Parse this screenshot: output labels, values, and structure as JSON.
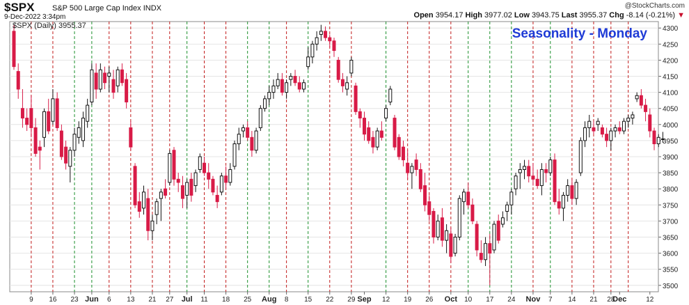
{
  "header": {
    "symbol": "$SPX",
    "name": "S&P 500 Large Cap Index",
    "exchange": "INDX",
    "date": "9-Dec-2022 3:34pm",
    "credit": "@StockCharts.com",
    "quote": {
      "open_label": "Open",
      "open": "3954.17",
      "high_label": "High",
      "high": "3977.02",
      "low_label": "Low",
      "low": "3943.75",
      "last_label": "Last",
      "last": "3955.37",
      "chg_label": "Chg",
      "chg": "-8.14 (-0.21%)",
      "down_marker": "▼"
    }
  },
  "colors": {
    "up": "#ffffff",
    "down": "#d81b47",
    "neutral": "#111111",
    "title": "#1f3bd6",
    "grid_green": "#1a8f2a",
    "grid_red": "#c21a1a"
  },
  "chart_data": {
    "type": "candlestick",
    "title": "Seasonality - Monday",
    "legend": "$SPX (Daily) 3955.37",
    "ylim": [
      3480,
      4320
    ],
    "yticks": [
      3500,
      3550,
      3600,
      3650,
      3700,
      3750,
      3800,
      3850,
      3900,
      3950,
      4000,
      4050,
      4100,
      4150,
      4200,
      4250,
      4300
    ],
    "xtick_labels": [
      {
        "day": 4,
        "label": "9"
      },
      {
        "day": 9,
        "label": "16"
      },
      {
        "day": 14,
        "label": "23"
      },
      {
        "day": 18,
        "label": "Jun"
      },
      {
        "day": 22,
        "label": "6"
      },
      {
        "day": 27,
        "label": "13"
      },
      {
        "day": 32,
        "label": "21"
      },
      {
        "day": 36,
        "label": "27"
      },
      {
        "day": 40,
        "label": "Jul"
      },
      {
        "day": 44,
        "label": "11"
      },
      {
        "day": 49,
        "label": "18"
      },
      {
        "day": 54,
        "label": "25"
      },
      {
        "day": 59,
        "label": "Aug"
      },
      {
        "day": 63,
        "label": "8"
      },
      {
        "day": 68,
        "label": "15"
      },
      {
        "day": 73,
        "label": "22"
      },
      {
        "day": 78,
        "label": "29"
      },
      {
        "day": 81,
        "label": "Sep"
      },
      {
        "day": 86,
        "label": "12"
      },
      {
        "day": 91,
        "label": "19"
      },
      {
        "day": 96,
        "label": "26"
      },
      {
        "day": 101,
        "label": "Oct"
      },
      {
        "day": 105,
        "label": "10"
      },
      {
        "day": 110,
        "label": "17"
      },
      {
        "day": 115,
        "label": "24"
      },
      {
        "day": 120,
        "label": "Nov"
      },
      {
        "day": 124,
        "label": "7"
      },
      {
        "day": 129,
        "label": "14"
      },
      {
        "day": 134,
        "label": "21"
      },
      {
        "day": 138,
        "label": "28"
      },
      {
        "day": 140,
        "label": "Dec"
      },
      {
        "day": 147,
        "label": "12"
      }
    ],
    "vlines": [
      {
        "day": 4,
        "color": "red"
      },
      {
        "day": 9,
        "color": "red"
      },
      {
        "day": 14,
        "color": "green"
      },
      {
        "day": 18,
        "color": "green"
      },
      {
        "day": 22,
        "color": "red"
      },
      {
        "day": 27,
        "color": "red"
      },
      {
        "day": 32,
        "color": "red"
      },
      {
        "day": 36,
        "color": "red"
      },
      {
        "day": 40,
        "color": "green"
      },
      {
        "day": 44,
        "color": "red"
      },
      {
        "day": 49,
        "color": "red"
      },
      {
        "day": 54,
        "color": "green"
      },
      {
        "day": 59,
        "color": "green"
      },
      {
        "day": 63,
        "color": "red"
      },
      {
        "day": 68,
        "color": "green"
      },
      {
        "day": 73,
        "color": "red"
      },
      {
        "day": 78,
        "color": "red"
      },
      {
        "day": 86,
        "color": "green"
      },
      {
        "day": 91,
        "color": "red"
      },
      {
        "day": 96,
        "color": "red"
      },
      {
        "day": 101,
        "color": "red"
      },
      {
        "day": 105,
        "color": "green"
      },
      {
        "day": 110,
        "color": "green"
      },
      {
        "day": 115,
        "color": "green"
      },
      {
        "day": 120,
        "color": "red"
      },
      {
        "day": 124,
        "color": "green"
      },
      {
        "day": 129,
        "color": "red"
      },
      {
        "day": 134,
        "color": "red"
      },
      {
        "day": 138,
        "color": "red"
      },
      {
        "day": 142,
        "color": "red"
      }
    ],
    "first_day": 0,
    "last_day": 148,
    "ohlc": [
      [
        4290,
        4310,
        4170,
        4180
      ],
      [
        4165,
        4190,
        4080,
        4110
      ],
      [
        4050,
        4110,
        3990,
        4020
      ],
      [
        4020,
        4050,
        3980,
        4000
      ],
      [
        4050,
        4090,
        3960,
        3990
      ],
      [
        3990,
        4020,
        3900,
        3910
      ],
      [
        3930,
        3950,
        3860,
        3920
      ],
      [
        3960,
        4050,
        3930,
        4040
      ],
      [
        4040,
        4080,
        3970,
        3980
      ],
      [
        4010,
        4110,
        4000,
        4080
      ],
      [
        4080,
        4100,
        3980,
        3990
      ],
      [
        3980,
        4000,
        3890,
        3900
      ],
      [
        3930,
        3950,
        3860,
        3880
      ],
      [
        3870,
        3930,
        3820,
        3920
      ],
      [
        3920,
        3990,
        3900,
        3970
      ],
      [
        3960,
        4010,
        3940,
        3990
      ],
      [
        3950,
        4040,
        3930,
        4020
      ],
      [
        4010,
        4080,
        3990,
        4060
      ],
      [
        4070,
        4190,
        4060,
        4170
      ],
      [
        4160,
        4190,
        4080,
        4110
      ],
      [
        4110,
        4190,
        4100,
        4170
      ],
      [
        4160,
        4180,
        4110,
        4130
      ],
      [
        4150,
        4180,
        4100,
        4160
      ],
      [
        4140,
        4170,
        4080,
        4100
      ],
      [
        4120,
        4180,
        4100,
        4170
      ],
      [
        4170,
        4190,
        4120,
        4130
      ],
      [
        4140,
        4160,
        4050,
        4070
      ],
      [
        3990,
        4010,
        3920,
        3930
      ],
      [
        3870,
        3880,
        3740,
        3750
      ],
      [
        3760,
        3790,
        3710,
        3730
      ],
      [
        3740,
        3810,
        3720,
        3790
      ],
      [
        3770,
        3800,
        3640,
        3670
      ],
      [
        3670,
        3720,
        3640,
        3700
      ],
      [
        3720,
        3770,
        3690,
        3760
      ],
      [
        3770,
        3800,
        3700,
        3790
      ],
      [
        3800,
        3830,
        3770,
        3780
      ],
      [
        3820,
        3920,
        3810,
        3910
      ],
      [
        3920,
        3930,
        3810,
        3830
      ],
      [
        3830,
        3850,
        3790,
        3820
      ],
      [
        3810,
        3840,
        3740,
        3770
      ],
      [
        3780,
        3830,
        3740,
        3820
      ],
      [
        3830,
        3850,
        3760,
        3780
      ],
      [
        3810,
        3860,
        3790,
        3850
      ],
      [
        3860,
        3910,
        3850,
        3900
      ],
      [
        3880,
        3900,
        3840,
        3850
      ],
      [
        3850,
        3880,
        3800,
        3830
      ],
      [
        3830,
        3840,
        3780,
        3790
      ],
      [
        3780,
        3810,
        3740,
        3760
      ],
      [
        3790,
        3850,
        3780,
        3840
      ],
      [
        3840,
        3870,
        3800,
        3820
      ],
      [
        3820,
        3880,
        3810,
        3860
      ],
      [
        3870,
        3950,
        3860,
        3940
      ],
      [
        3940,
        3990,
        3920,
        3970
      ],
      [
        3980,
        4000,
        3960,
        3990
      ],
      [
        3990,
        4010,
        3950,
        3960
      ],
      [
        3960,
        3980,
        3900,
        3920
      ],
      [
        3920,
        3990,
        3910,
        3980
      ],
      [
        3990,
        4060,
        3980,
        4050
      ],
      [
        4050,
        4090,
        4040,
        4080
      ],
      [
        4080,
        4120,
        4060,
        4100
      ],
      [
        4100,
        4140,
        4080,
        4120
      ],
      [
        4120,
        4160,
        4110,
        4140
      ],
      [
        4140,
        4160,
        4090,
        4100
      ],
      [
        4100,
        4140,
        4080,
        4130
      ],
      [
        4140,
        4160,
        4120,
        4150
      ],
      [
        4150,
        4170,
        4120,
        4130
      ],
      [
        4130,
        4150,
        4100,
        4110
      ],
      [
        4110,
        4140,
        4100,
        4130
      ],
      [
        4180,
        4240,
        4170,
        4210
      ],
      [
        4210,
        4260,
        4190,
        4250
      ],
      [
        4250,
        4290,
        4230,
        4270
      ],
      [
        4280,
        4310,
        4260,
        4290
      ],
      [
        4290,
        4305,
        4260,
        4270
      ],
      [
        4270,
        4280,
        4240,
        4260
      ],
      [
        4260,
        4270,
        4210,
        4230
      ],
      [
        4200,
        4210,
        4130,
        4140
      ],
      [
        4140,
        4160,
        4100,
        4120
      ],
      [
        4110,
        4150,
        4090,
        4130
      ],
      [
        4160,
        4210,
        4150,
        4200
      ],
      [
        4120,
        4130,
        4030,
        4040
      ],
      [
        4040,
        4050,
        3990,
        4020
      ],
      [
        4020,
        4040,
        3950,
        3970
      ],
      [
        3990,
        4010,
        3940,
        3950
      ],
      [
        3960,
        3980,
        3910,
        3930
      ],
      [
        3930,
        3990,
        3920,
        3980
      ],
      [
        3980,
        4010,
        3950,
        3960
      ],
      [
        4020,
        4060,
        4010,
        4050
      ],
      [
        4070,
        4120,
        4060,
        4110
      ],
      [
        4020,
        4030,
        3920,
        3930
      ],
      [
        3960,
        3970,
        3890,
        3900
      ],
      [
        3930,
        3950,
        3870,
        3890
      ],
      [
        3880,
        3920,
        3830,
        3850
      ],
      [
        3850,
        3880,
        3800,
        3870
      ],
      [
        3890,
        3910,
        3840,
        3860
      ],
      [
        3860,
        3880,
        3790,
        3800
      ],
      [
        3810,
        3850,
        3730,
        3750
      ],
      [
        3760,
        3780,
        3700,
        3720
      ],
      [
        3730,
        3740,
        3630,
        3650
      ],
      [
        3650,
        3720,
        3640,
        3700
      ],
      [
        3710,
        3740,
        3620,
        3640
      ],
      [
        3640,
        3690,
        3600,
        3670
      ],
      [
        3660,
        3680,
        3570,
        3590
      ],
      [
        3600,
        3660,
        3590,
        3650
      ],
      [
        3650,
        3780,
        3640,
        3770
      ],
      [
        3760,
        3800,
        3720,
        3790
      ],
      [
        3790,
        3820,
        3740,
        3750
      ],
      [
        3750,
        3770,
        3690,
        3700
      ],
      [
        3690,
        3700,
        3590,
        3610
      ],
      [
        3600,
        3640,
        3570,
        3580
      ],
      [
        3580,
        3650,
        3560,
        3630
      ],
      [
        3630,
        3660,
        3500,
        3600
      ],
      [
        3610,
        3700,
        3600,
        3690
      ],
      [
        3700,
        3720,
        3630,
        3640
      ],
      [
        3690,
        3730,
        3680,
        3710
      ],
      [
        3730,
        3760,
        3700,
        3750
      ],
      [
        3750,
        3800,
        3720,
        3790
      ],
      [
        3800,
        3850,
        3780,
        3840
      ],
      [
        3850,
        3880,
        3800,
        3860
      ],
      [
        3860,
        3890,
        3830,
        3870
      ],
      [
        3870,
        3890,
        3820,
        3840
      ],
      [
        3840,
        3880,
        3810,
        3830
      ],
      [
        3830,
        3860,
        3800,
        3810
      ],
      [
        3810,
        3880,
        3780,
        3860
      ],
      [
        3860,
        3880,
        3820,
        3850
      ],
      [
        3850,
        3900,
        3840,
        3890
      ],
      [
        3890,
        3910,
        3750,
        3760
      ],
      [
        3760,
        3800,
        3720,
        3740
      ],
      [
        3740,
        3790,
        3700,
        3780
      ],
      [
        3780,
        3830,
        3760,
        3810
      ],
      [
        3810,
        3830,
        3750,
        3770
      ],
      [
        3770,
        3830,
        3750,
        3820
      ],
      [
        3850,
        3960,
        3840,
        3950
      ],
      [
        3950,
        4010,
        3930,
        3990
      ],
      [
        3990,
        4030,
        3960,
        4010
      ],
      [
        3990,
        4010,
        3970,
        3980
      ],
      [
        4000,
        4020,
        3980,
        4010
      ],
      [
        3990,
        4000,
        3960,
        3970
      ],
      [
        3970,
        3990,
        3930,
        3950
      ],
      [
        3950,
        3990,
        3920,
        3980
      ],
      [
        3980,
        4000,
        3960,
        3990
      ],
      [
        3990,
        4010,
        3970,
        3980
      ],
      [
        3980,
        4020,
        3970,
        4010
      ],
      [
        4010,
        4030,
        3990,
        4020
      ],
      [
        4020,
        4040,
        4000,
        4030
      ],
      [
        4080,
        4100,
        4070,
        4090
      ],
      [
        4090,
        4110,
        4050,
        4060
      ],
      [
        4060,
        4080,
        4010,
        4040
      ],
      [
        4030,
        4050,
        3960,
        3980
      ],
      [
        3980,
        3990,
        3920,
        3940
      ],
      [
        3940,
        3970,
        3930,
        3960
      ],
      [
        3954.17,
        3977.02,
        3943.75,
        3955.37
      ]
    ]
  }
}
